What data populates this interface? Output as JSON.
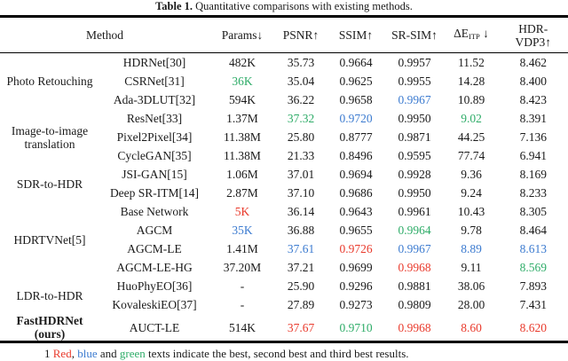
{
  "caption": {
    "label": "Table 1.",
    "text": " Quantitative comparisons with existing methods."
  },
  "header": {
    "method": "Method",
    "params": "Params↓",
    "psnr": "PSNR↑",
    "ssim": "SSIM↑",
    "srsim": "SR-SIM↑",
    "deitp": {
      "base": "ΔE",
      "sub": "ITP",
      "arrow": " ↓"
    },
    "hdrvdp": {
      "line1": "HDR-",
      "line2": "VDP3↑"
    }
  },
  "colors": {
    "best": "#e93a2c",
    "second": "#3c7bd0",
    "third": "#2eac68"
  },
  "groups": [
    {
      "label_lines": [
        "Photo Retouching"
      ],
      "bold": false,
      "rows": [
        {
          "method": "HDRNet[30]",
          "values": [
            "482K",
            "35.73",
            "0.9664",
            "0.9957",
            "11.52",
            "8.462"
          ],
          "colors": [
            null,
            null,
            null,
            null,
            null,
            null
          ]
        },
        {
          "method": "CSRNet[31]",
          "values": [
            "36K",
            "35.04",
            "0.9625",
            "0.9955",
            "14.28",
            "8.400"
          ],
          "colors": [
            "third",
            null,
            null,
            null,
            null,
            null
          ]
        },
        {
          "method": "Ada-3DLUT[32]",
          "values": [
            "594K",
            "36.22",
            "0.9658",
            "0.9967",
            "10.89",
            "8.423"
          ],
          "colors": [
            null,
            null,
            null,
            "second",
            null,
            null
          ]
        }
      ]
    },
    {
      "label_lines": [
        "Image-to-image",
        "translation"
      ],
      "bold": false,
      "rows": [
        {
          "method": "ResNet[33]",
          "values": [
            "1.37M",
            "37.32",
            "0.9720",
            "0.9950",
            "9.02",
            "8.391"
          ],
          "colors": [
            null,
            "third",
            "second",
            null,
            "third",
            null
          ]
        },
        {
          "method": "Pixel2Pixel[34]",
          "values": [
            "11.38M",
            "25.80",
            "0.8777",
            "0.9871",
            "44.25",
            "7.136"
          ],
          "colors": [
            null,
            null,
            null,
            null,
            null,
            null
          ]
        },
        {
          "method": "CycleGAN[35]",
          "values": [
            "11.38M",
            "21.33",
            "0.8496",
            "0.9595",
            "77.74",
            "6.941"
          ],
          "colors": [
            null,
            null,
            null,
            null,
            null,
            null
          ]
        }
      ]
    },
    {
      "label_lines": [
        "SDR-to-HDR"
      ],
      "bold": false,
      "rows": [
        {
          "method": "JSI-GAN[15]",
          "values": [
            "1.06M",
            "37.01",
            "0.9694",
            "0.9928",
            "9.36",
            "8.169"
          ],
          "colors": [
            null,
            null,
            null,
            null,
            null,
            null
          ]
        },
        {
          "method": "Deep SR-ITM[14]",
          "values": [
            "2.87M",
            "37.10",
            "0.9686",
            "0.9950",
            "9.24",
            "8.233"
          ],
          "colors": [
            null,
            null,
            null,
            null,
            null,
            null
          ]
        }
      ]
    },
    {
      "label_lines": [
        "HDRTVNet[5]"
      ],
      "bold": false,
      "rows": [
        {
          "method": "Base Network",
          "values": [
            "5K",
            "36.14",
            "0.9643",
            "0.9961",
            "10.43",
            "8.305"
          ],
          "colors": [
            "best",
            null,
            null,
            null,
            null,
            null
          ]
        },
        {
          "method": "AGCM",
          "values": [
            "35K",
            "36.88",
            "0.9655",
            "0.9964",
            "9.78",
            "8.464"
          ],
          "colors": [
            "second",
            null,
            null,
            "third",
            null,
            null
          ]
        },
        {
          "method": "AGCM-LE",
          "values": [
            "1.41M",
            "37.61",
            "0.9726",
            "0.9967",
            "8.89",
            "8.613"
          ],
          "colors": [
            null,
            "second",
            "best",
            "second",
            "second",
            "second"
          ]
        },
        {
          "method": "AGCM-LE-HG",
          "values": [
            "37.20M",
            "37.21",
            "0.9699",
            "0.9968",
            "9.11",
            "8.569"
          ],
          "colors": [
            null,
            null,
            null,
            "best",
            null,
            "third"
          ]
        }
      ]
    },
    {
      "label_lines": [
        "LDR-to-HDR"
      ],
      "bold": false,
      "rows": [
        {
          "method": "HuoPhyEO[36]",
          "values": [
            "-",
            "25.90",
            "0.9296",
            "0.9881",
            "38.06",
            "7.893"
          ],
          "colors": [
            null,
            null,
            null,
            null,
            null,
            null
          ]
        },
        {
          "method": "KovaleskiEO[37]",
          "values": [
            "-",
            "27.89",
            "0.9273",
            "0.9809",
            "28.00",
            "7.431"
          ],
          "colors": [
            null,
            null,
            null,
            null,
            null,
            null
          ]
        }
      ]
    },
    {
      "label_lines": [
        "FastHDRNet",
        "(ours)"
      ],
      "bold": true,
      "rows": [
        {
          "method": "AUCT-LE",
          "values": [
            "514K",
            "37.67",
            "0.9710",
            "0.9968",
            "8.60",
            "8.620"
          ],
          "colors": [
            null,
            "best",
            "third",
            "best",
            "best",
            "best"
          ]
        }
      ]
    }
  ],
  "footnote": [
    {
      "text": "1 ",
      "color": null
    },
    {
      "text": "Red",
      "color": "best"
    },
    {
      "text": ", ",
      "color": null
    },
    {
      "text": "blue",
      "color": "second"
    },
    {
      "text": " and ",
      "color": null
    },
    {
      "text": "green",
      "color": "third"
    },
    {
      "text": " texts indicate the best, second best and third best results.",
      "color": null
    }
  ]
}
